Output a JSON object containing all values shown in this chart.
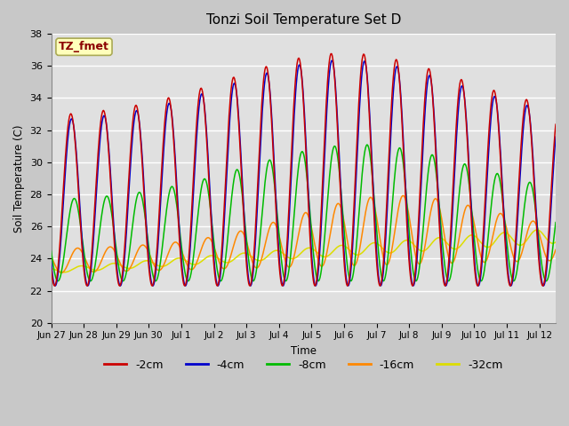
{
  "title": "Tonzi Soil Temperature Set D",
  "xlabel": "Time",
  "ylabel": "Soil Temperature (C)",
  "annotation": "TZ_fmet",
  "ylim": [
    20,
    38
  ],
  "series_colors": {
    "-2cm": "#cc0000",
    "-4cm": "#0000cc",
    "-8cm": "#00bb00",
    "-16cm": "#ff8800",
    "-32cm": "#dddd00"
  },
  "tick_labels": [
    "Jun 27",
    "Jun 28",
    "Jun 29",
    "Jun 30",
    "Jul 1",
    "Jul 2",
    "Jul 3",
    "Jul 4",
    "Jul 5",
    "Jul 6",
    "Jul 7",
    "Jul 8",
    "Jul 9",
    "Jul 10",
    "Jul 11",
    "Jul 12"
  ],
  "legend_line_colors": [
    "#cc0000",
    "#0000cc",
    "#00bb00",
    "#ff8800",
    "#dddd00"
  ],
  "legend_labels": [
    "-2cm",
    "-4cm",
    "-8cm",
    "-16cm",
    "-32cm"
  ],
  "fig_facecolor": "#c8c8c8",
  "ax_facecolor": "#e0e0e0"
}
